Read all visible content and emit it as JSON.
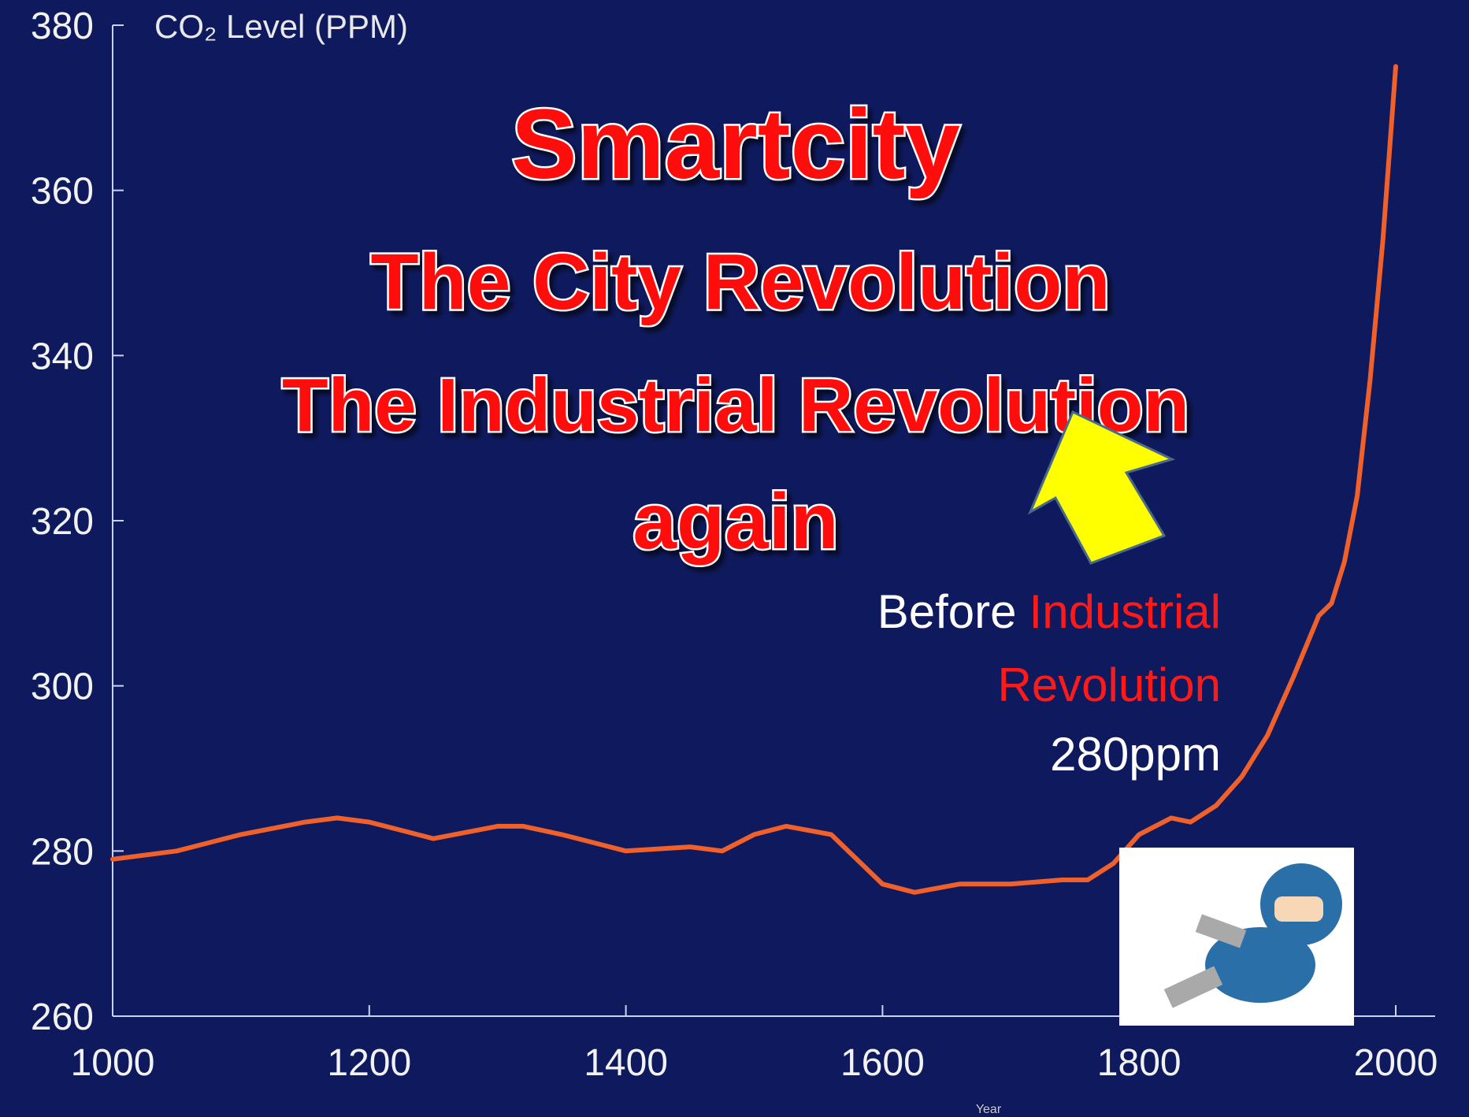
{
  "chart_data": {
    "type": "line",
    "y_axis_label": "CO₂ Level (PPM)",
    "x_axis_label": "Year",
    "annotations": {
      "headline": [
        "Smartcity",
        "The City Revolution",
        "The Industrial Revolution",
        "again"
      ],
      "note_before": "Before",
      "note_industrial": "Industrial",
      "note_revolution": "Revolution",
      "note_ppm": "280ppm"
    },
    "x": [
      1000,
      1050,
      1100,
      1150,
      1175,
      1200,
      1250,
      1300,
      1320,
      1350,
      1400,
      1450,
      1475,
      1500,
      1525,
      1560,
      1600,
      1625,
      1660,
      1700,
      1740,
      1760,
      1780,
      1800,
      1825,
      1840,
      1860,
      1880,
      1900,
      1920,
      1940,
      1950,
      1960,
      1970,
      1980,
      1990,
      2000
    ],
    "values": [
      279,
      280,
      282,
      283.5,
      284,
      283.5,
      281.5,
      283,
      283,
      282,
      280,
      280.5,
      280,
      282,
      283,
      282,
      276,
      275,
      276,
      276,
      276.5,
      276.5,
      278.5,
      282,
      284,
      283.5,
      285.5,
      289,
      294,
      301,
      308.5,
      310,
      315,
      323,
      337,
      354,
      375
    ],
    "color": "#f0602a",
    "xlim": [
      1000,
      2000
    ],
    "ylim": [
      260,
      380
    ],
    "xticks": [
      1000,
      1200,
      1400,
      1600,
      1800,
      2000
    ],
    "yticks": [
      260,
      280,
      300,
      320,
      340,
      360,
      380
    ]
  }
}
